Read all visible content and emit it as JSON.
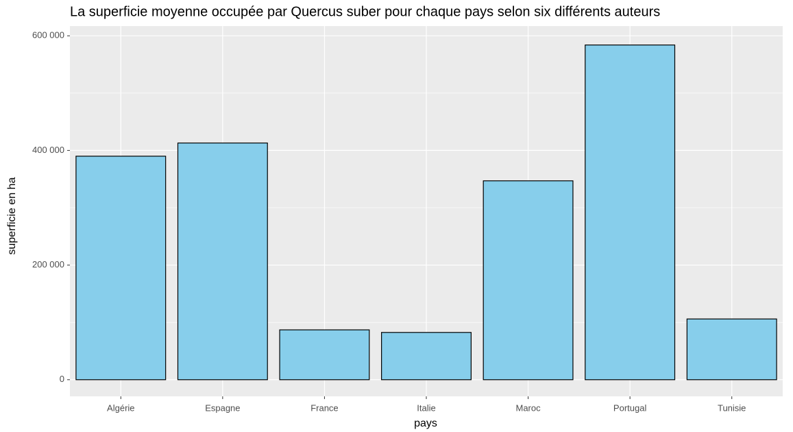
{
  "chart_data": {
    "type": "bar",
    "title": "La superficie moyenne occupée par Quercus suber pour chaque pays selon six différents auteurs",
    "x_label": "pays",
    "y_label": "superficie en ha",
    "categories": [
      "Algérie",
      "Espagne",
      "France",
      "Italie",
      "Maroc",
      "Portugal",
      "Tunisie"
    ],
    "values": [
      390000,
      413000,
      87000,
      82500,
      347000,
      584000,
      106000
    ],
    "color": "#87ceeb",
    "ylim": [
      -29000,
      617000
    ],
    "yticks": [
      0,
      {
        "value": 200000,
        "label": "200 000"
      },
      {
        "value": 400000,
        "label": "400 000"
      },
      {
        "value": 600000,
        "label": "600 000"
      }
    ],
    "grid": true
  }
}
